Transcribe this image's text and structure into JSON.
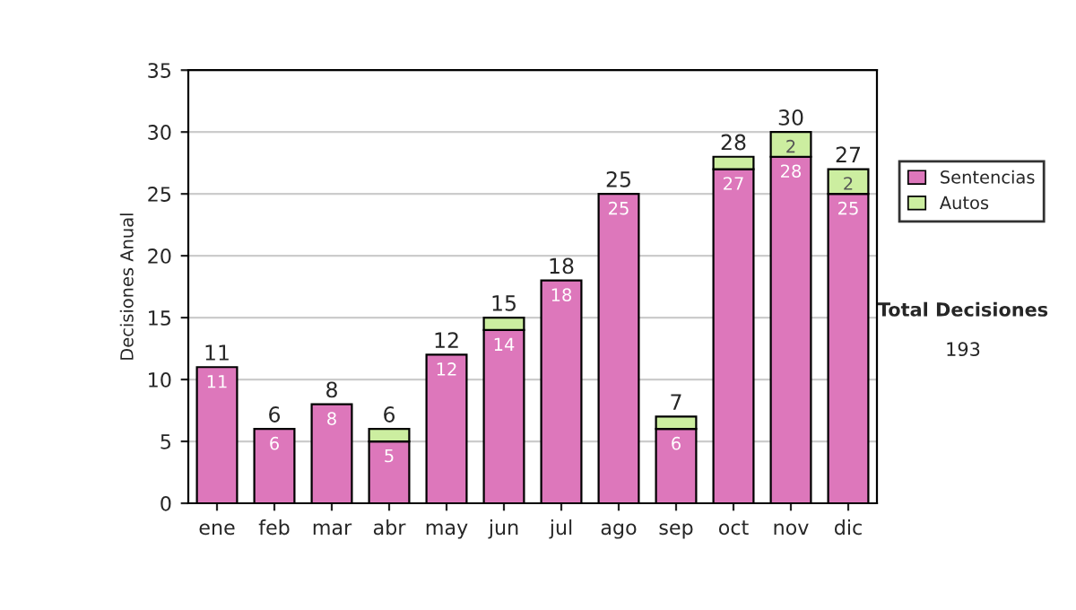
{
  "chart_data": {
    "type": "bar",
    "stacked": true,
    "ylabel": "Decisiones Anual",
    "categories": [
      "ene",
      "feb",
      "mar",
      "abr",
      "may",
      "jun",
      "jul",
      "ago",
      "sep",
      "oct",
      "nov",
      "dic"
    ],
    "series": [
      {
        "name": "Sentencias",
        "color": "#dd77bb",
        "values": [
          11,
          6,
          8,
          5,
          12,
          14,
          18,
          25,
          6,
          27,
          28,
          25
        ],
        "value_labels": [
          "11",
          "6",
          "8",
          "5",
          "12",
          "14",
          "18",
          "25",
          "6",
          "27",
          "28",
          "25"
        ]
      },
      {
        "name": "Autos",
        "color": "#cceea0",
        "values": [
          0,
          0,
          0,
          1,
          0,
          1,
          0,
          0,
          1,
          1,
          2,
          2
        ],
        "value_labels": [
          null,
          null,
          null,
          null,
          null,
          null,
          null,
          null,
          null,
          null,
          "2",
          "2"
        ]
      }
    ],
    "totals": [
      "11",
      "6",
      "8",
      "6",
      "12",
      "15",
      "18",
      "25",
      "7",
      "28",
      "30",
      "27"
    ],
    "ylim": [
      0,
      35
    ],
    "yticks": [
      0,
      5,
      10,
      15,
      20,
      25,
      30,
      35
    ],
    "grid": "y",
    "legend": "right",
    "annotations": [
      "Total Decisiones",
      "193"
    ]
  }
}
